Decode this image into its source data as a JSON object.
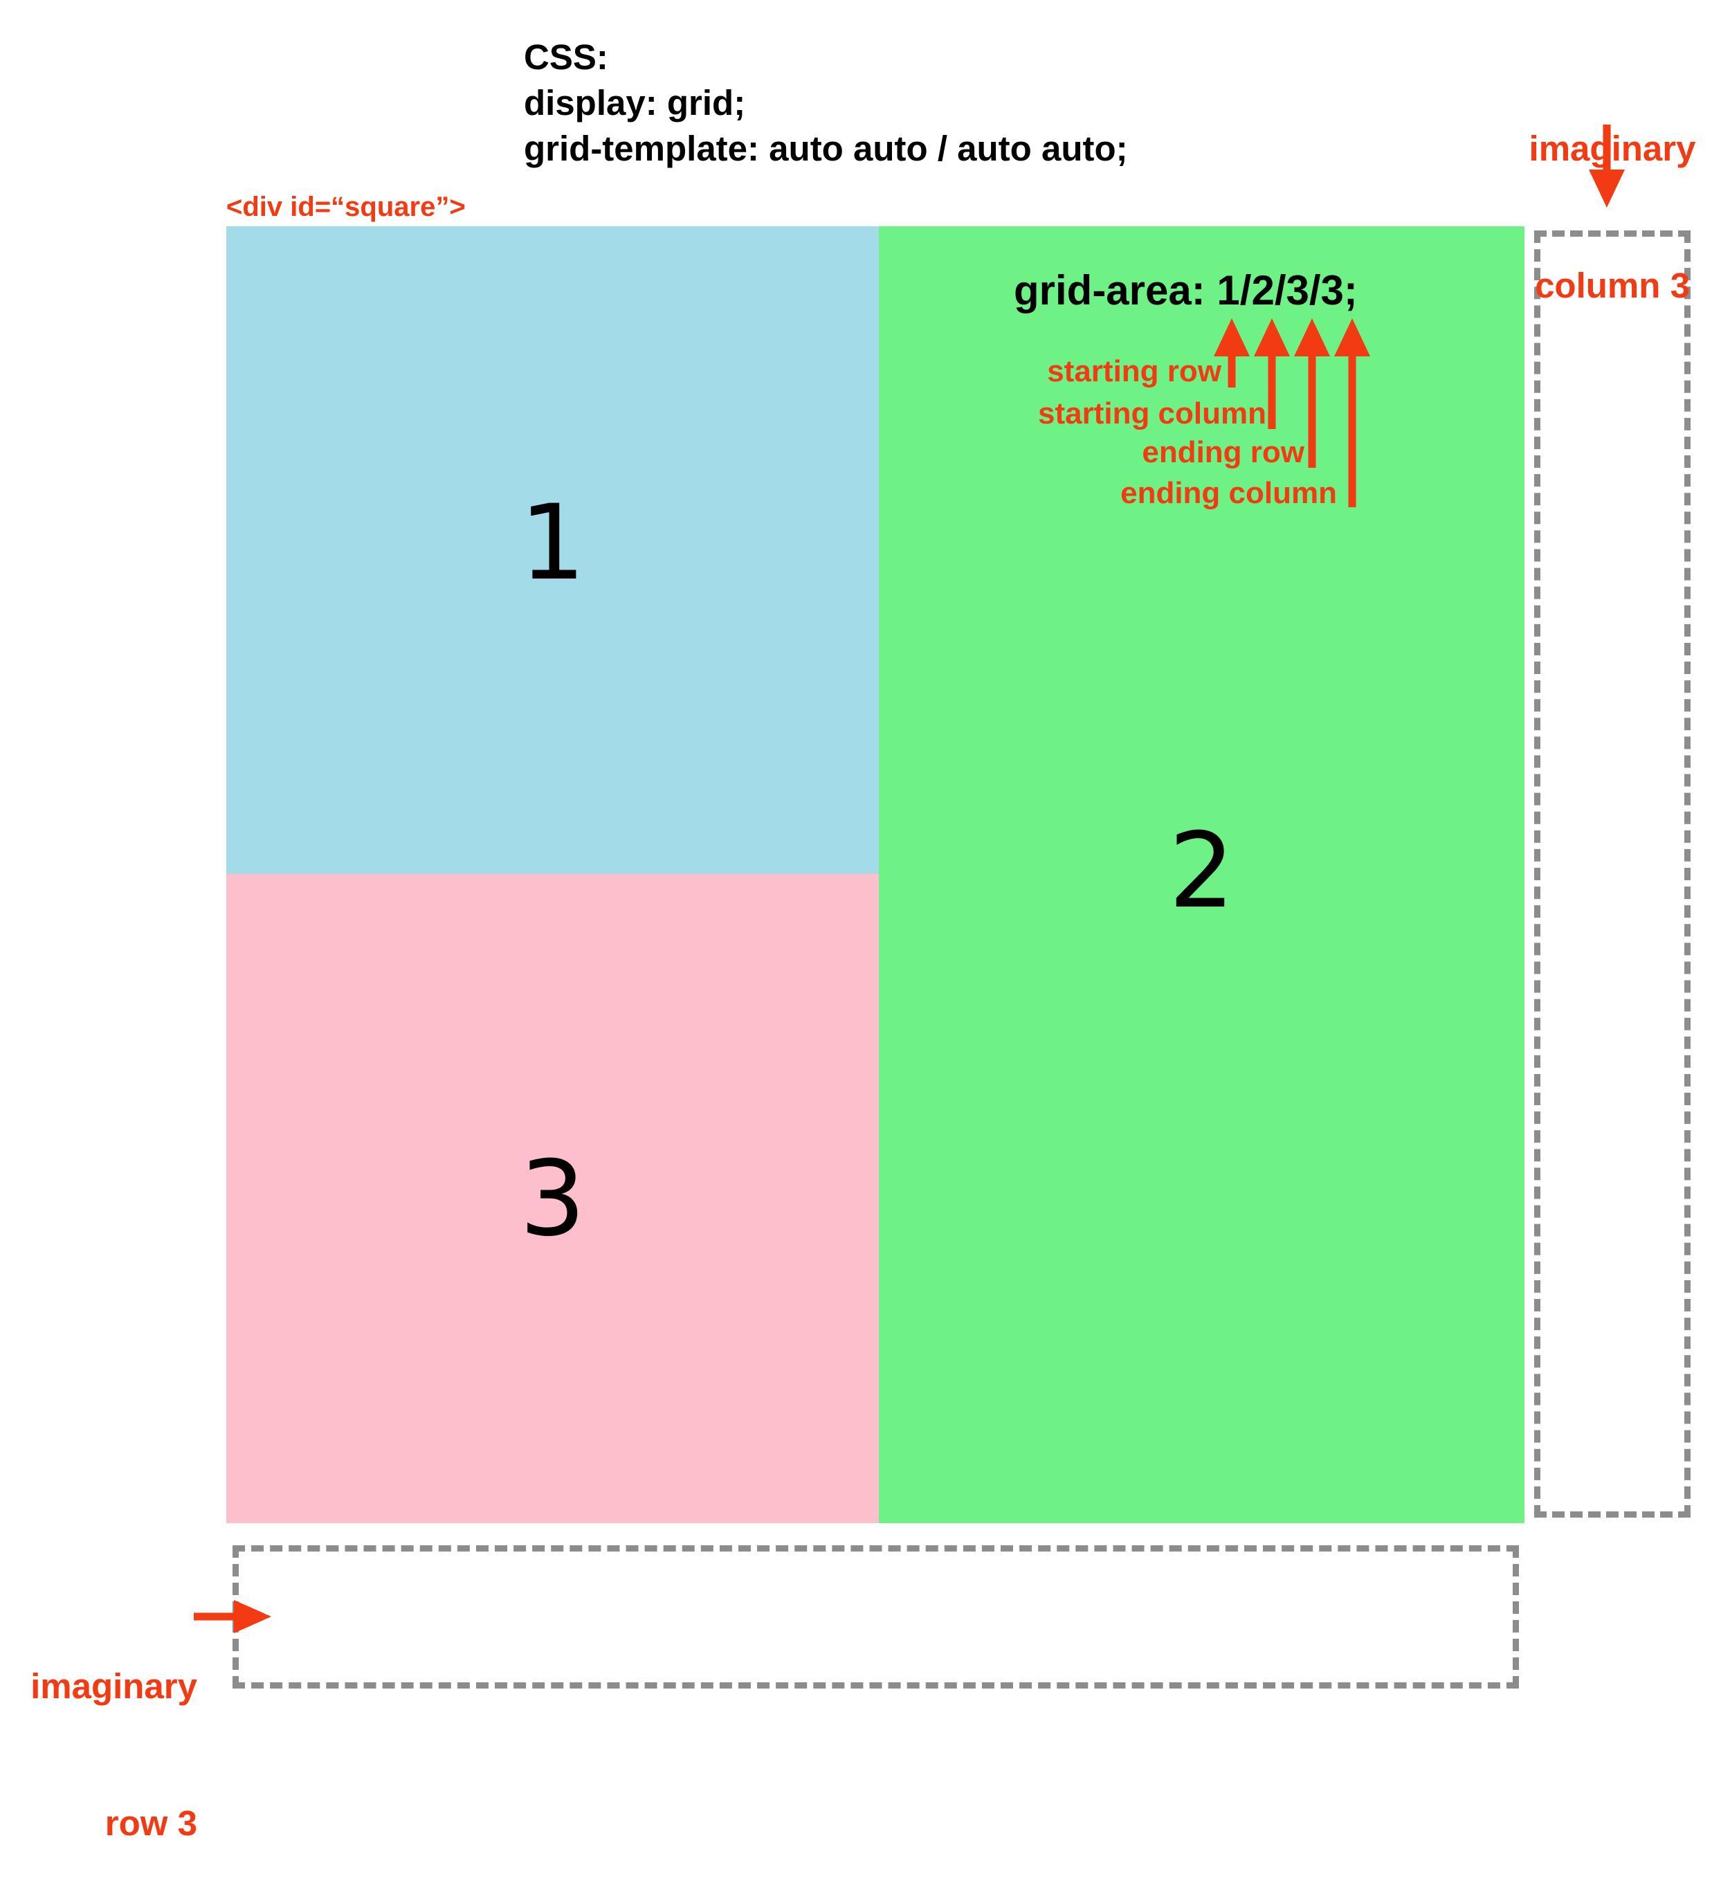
{
  "css_block": {
    "lines": [
      "CSS:",
      "display: grid;",
      "grid-template: auto auto / auto auto;"
    ]
  },
  "div_label": "<div id=“square”>",
  "cells": [
    {
      "number": "1",
      "color": "#a3dce8"
    },
    {
      "number": "2",
      "color": "#6ef285"
    },
    {
      "number": "3",
      "color": "#fdbfcc"
    }
  ],
  "grid_area_code": "grid-area: 1/2/3/3;",
  "annotations": [
    "starting row",
    "starting column",
    "ending row",
    "ending column"
  ],
  "imaginary_column_label": [
    "imaginary",
    "column 3"
  ],
  "imaginary_row_label": [
    "imaginary",
    "row 3"
  ],
  "colors": {
    "annotation_red": "#f23a13",
    "dashed_gray": "#8c8c8c"
  }
}
